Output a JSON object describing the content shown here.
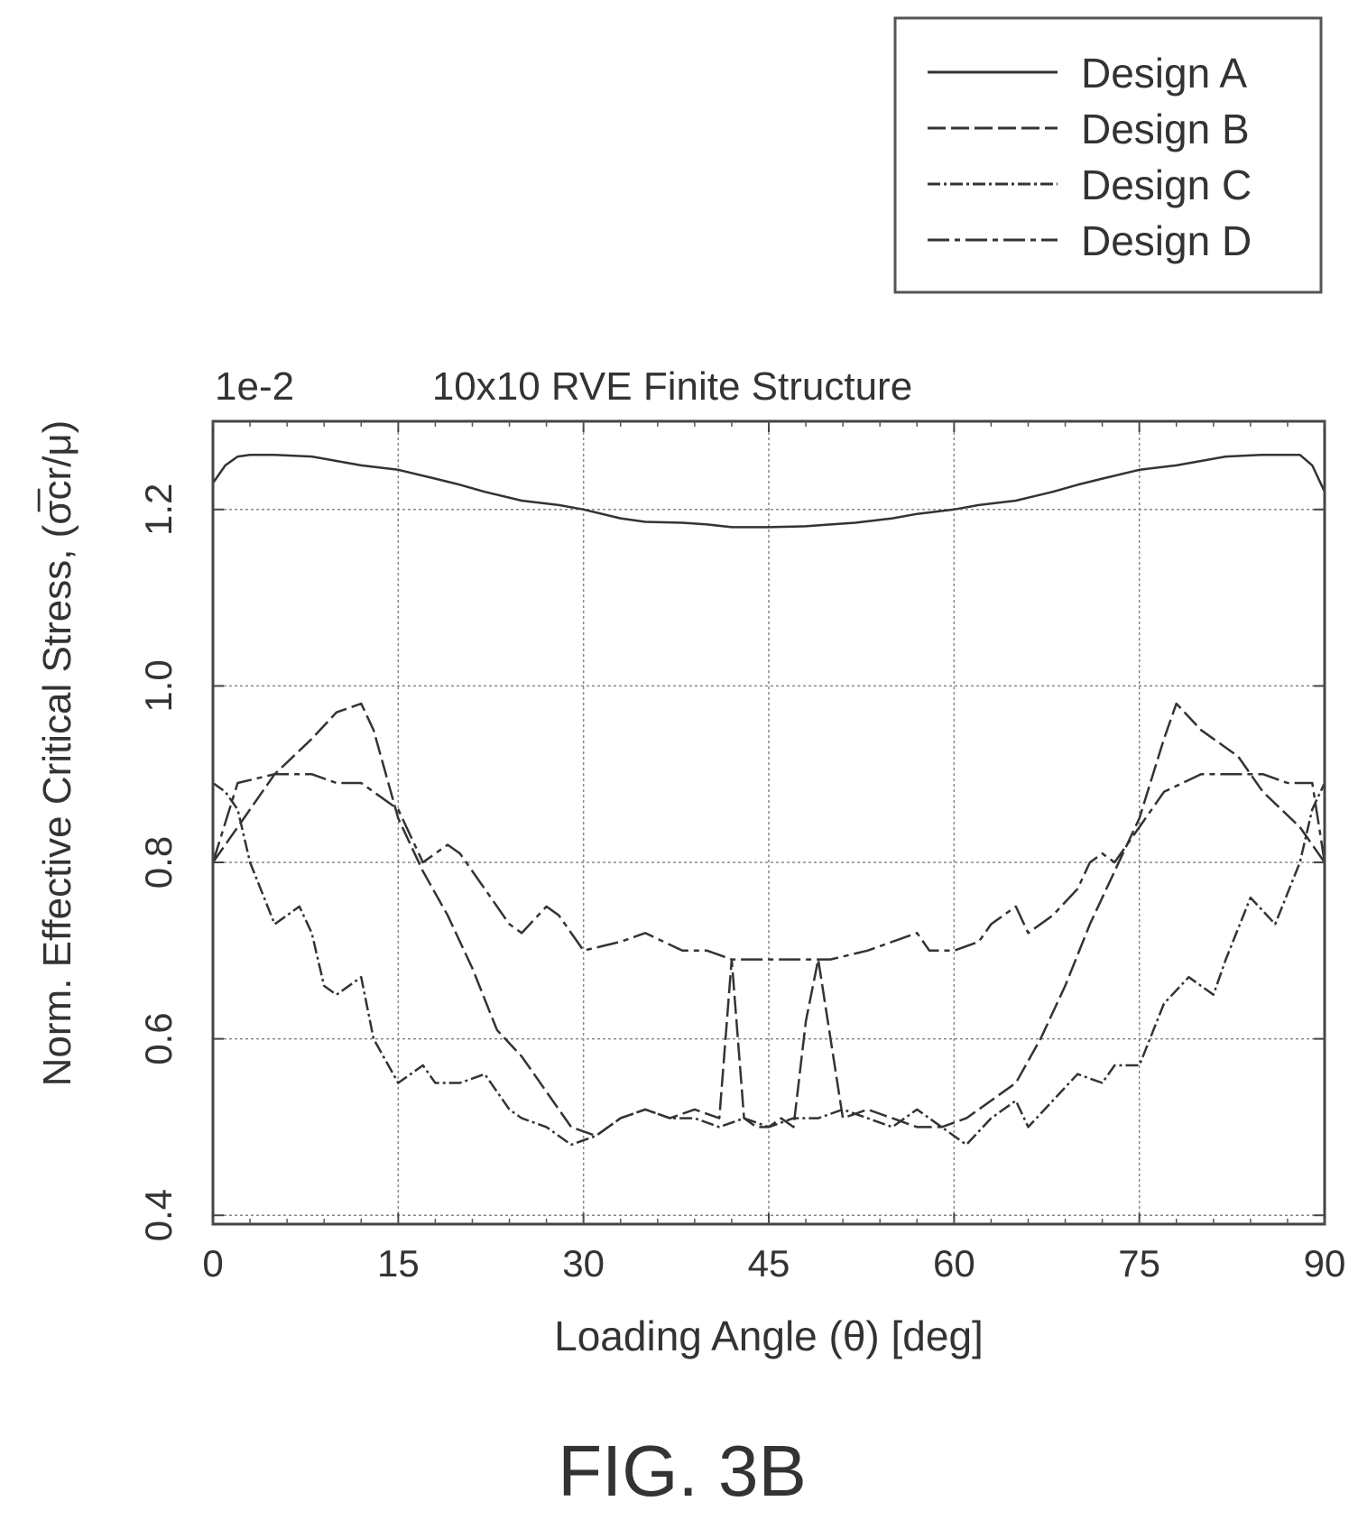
{
  "figure_label": "FIG. 3B",
  "chart_data": {
    "type": "line",
    "title": "10x10 RVE Finite Structure",
    "scale_label": "1e-2",
    "xlabel": "Loading Angle (θ) [deg]",
    "ylabel": "Norm. Effective Critical Stress, (σ̅cr/μ)",
    "xlim": [
      0,
      90
    ],
    "ylim": [
      0.39,
      1.3
    ],
    "xticks": [
      0,
      15,
      30,
      45,
      60,
      75,
      90
    ],
    "yticks": [
      0.4,
      0.6,
      0.8,
      1.0,
      1.2
    ],
    "xtick_labels": [
      "0",
      "15",
      "30",
      "45",
      "60",
      "75",
      "90"
    ],
    "ytick_labels": [
      "0.4",
      "0.6",
      "0.8",
      "1.0",
      "1.2"
    ],
    "grid": true,
    "legend_position": "top-right",
    "series": [
      {
        "name": "Design A",
        "dash": "",
        "x": [
          0,
          1,
          2,
          3,
          5,
          8,
          10,
          12,
          15,
          18,
          20,
          22,
          25,
          28,
          30,
          33,
          35,
          38,
          40,
          42,
          45,
          48,
          50,
          52,
          55,
          57,
          60,
          62,
          65,
          68,
          70,
          72,
          75,
          78,
          80,
          82,
          85,
          88,
          89,
          90
        ],
        "y": [
          1.23,
          1.25,
          1.26,
          1.262,
          1.262,
          1.26,
          1.255,
          1.25,
          1.245,
          1.235,
          1.228,
          1.22,
          1.21,
          1.205,
          1.2,
          1.19,
          1.186,
          1.185,
          1.183,
          1.18,
          1.18,
          1.181,
          1.183,
          1.185,
          1.19,
          1.195,
          1.2,
          1.205,
          1.21,
          1.22,
          1.228,
          1.235,
          1.245,
          1.25,
          1.255,
          1.26,
          1.262,
          1.262,
          1.25,
          1.22
        ]
      },
      {
        "name": "Design B",
        "dash": "20 6",
        "x": [
          0,
          2,
          5,
          8,
          10,
          12,
          13,
          15,
          17,
          19,
          21,
          23,
          25,
          27,
          29,
          31,
          33,
          35,
          37,
          39,
          41,
          42,
          43,
          44,
          45,
          46,
          47,
          48,
          49,
          51,
          53,
          55,
          57,
          59,
          61,
          63,
          65,
          67,
          69,
          71,
          73,
          75,
          77,
          78,
          80,
          83,
          85,
          88,
          90
        ],
        "y": [
          0.8,
          0.84,
          0.9,
          0.94,
          0.97,
          0.98,
          0.95,
          0.85,
          0.79,
          0.74,
          0.68,
          0.61,
          0.58,
          0.54,
          0.5,
          0.49,
          0.51,
          0.52,
          0.51,
          0.52,
          0.51,
          0.69,
          0.51,
          0.5,
          0.5,
          0.51,
          0.5,
          0.62,
          0.69,
          0.51,
          0.52,
          0.51,
          0.5,
          0.5,
          0.51,
          0.53,
          0.55,
          0.6,
          0.66,
          0.73,
          0.79,
          0.85,
          0.94,
          0.98,
          0.95,
          0.92,
          0.88,
          0.84,
          0.8
        ]
      },
      {
        "name": "Design C",
        "dash": "14 4 3 4",
        "x": [
          0,
          1,
          2,
          3,
          5,
          7,
          8,
          9,
          10,
          12,
          13,
          15,
          17,
          18,
          20,
          22,
          24,
          25,
          27,
          29,
          31,
          33,
          35,
          37,
          39,
          41,
          43,
          45,
          47,
          49,
          51,
          53,
          55,
          57,
          59,
          61,
          63,
          65,
          66,
          68,
          70,
          72,
          73,
          75,
          77,
          79,
          81,
          82,
          84,
          86,
          88,
          89,
          90
        ],
        "y": [
          0.89,
          0.88,
          0.86,
          0.8,
          0.73,
          0.75,
          0.72,
          0.66,
          0.65,
          0.67,
          0.6,
          0.55,
          0.57,
          0.55,
          0.55,
          0.56,
          0.52,
          0.51,
          0.5,
          0.48,
          0.49,
          0.51,
          0.52,
          0.51,
          0.51,
          0.5,
          0.51,
          0.5,
          0.51,
          0.51,
          0.52,
          0.51,
          0.5,
          0.52,
          0.5,
          0.48,
          0.51,
          0.53,
          0.5,
          0.53,
          0.56,
          0.55,
          0.57,
          0.57,
          0.64,
          0.67,
          0.65,
          0.69,
          0.76,
          0.73,
          0.8,
          0.86,
          0.89
        ]
      },
      {
        "name": "Design D",
        "dash": "24 6 6 6",
        "x": [
          0,
          2,
          5,
          8,
          10,
          12,
          13,
          15,
          17,
          18,
          19,
          20,
          22,
          24,
          25,
          27,
          28,
          30,
          33,
          35,
          38,
          40,
          42,
          45,
          48,
          50,
          53,
          55,
          57,
          58,
          60,
          62,
          63,
          65,
          66,
          68,
          70,
          71,
          72,
          73,
          75,
          77,
          80,
          82,
          85,
          87,
          89,
          90
        ],
        "y": [
          0.8,
          0.89,
          0.9,
          0.9,
          0.89,
          0.89,
          0.88,
          0.86,
          0.8,
          0.81,
          0.82,
          0.81,
          0.77,
          0.73,
          0.72,
          0.75,
          0.74,
          0.7,
          0.71,
          0.72,
          0.7,
          0.7,
          0.69,
          0.69,
          0.69,
          0.69,
          0.7,
          0.71,
          0.72,
          0.7,
          0.7,
          0.71,
          0.73,
          0.75,
          0.72,
          0.74,
          0.77,
          0.8,
          0.81,
          0.8,
          0.84,
          0.88,
          0.9,
          0.9,
          0.9,
          0.89,
          0.89,
          0.8
        ]
      }
    ]
  }
}
